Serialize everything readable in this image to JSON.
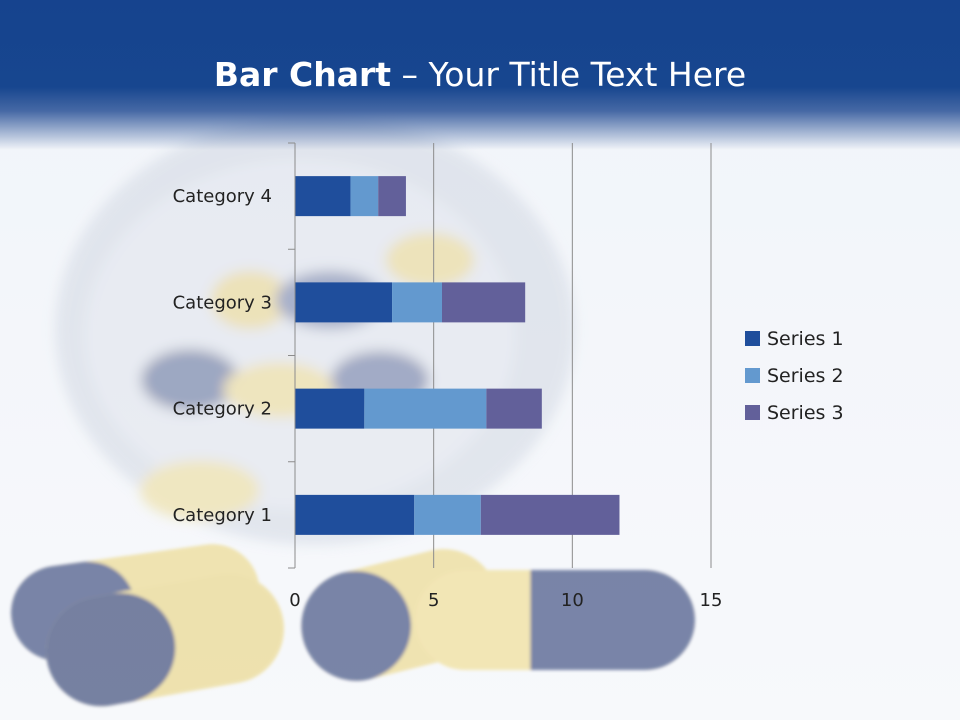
{
  "slide": {
    "title_bold": "Bar Chart",
    "title_dash": " – ",
    "title_rest": "Your Title Text Here"
  },
  "colors": {
    "header": "#17468f",
    "series1": "#1f4e9c",
    "series2": "#6399cf",
    "series3": "#62609a"
  },
  "chart_data": {
    "type": "bar",
    "orientation": "horizontal",
    "stacked": true,
    "categories": [
      "Category 1",
      "Category 2",
      "Category 3",
      "Category 4"
    ],
    "series": [
      {
        "name": "Series 1",
        "values": [
          4.3,
          2.5,
          3.5,
          2.0
        ],
        "color": "#1f4e9c"
      },
      {
        "name": "Series 2",
        "values": [
          2.4,
          4.4,
          1.8,
          1.0
        ],
        "color": "#6399cf"
      },
      {
        "name": "Series 3",
        "values": [
          5.0,
          2.0,
          3.0,
          1.0
        ],
        "color": "#62609a"
      }
    ],
    "x_ticks": [
      "0",
      "5",
      "10",
      "15"
    ],
    "xlim": [
      0,
      15
    ],
    "grid": true,
    "legend": "right"
  }
}
